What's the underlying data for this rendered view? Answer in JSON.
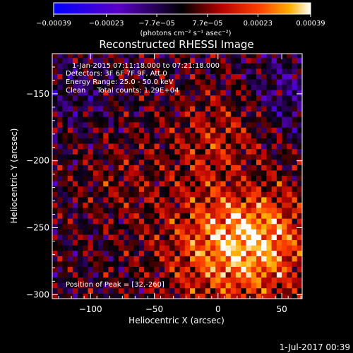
{
  "chart_data": {
    "type": "heatmap",
    "title": "Reconstructed RHESSI Image",
    "xlabel": "Heliocentric X (arcsec)",
    "ylabel": "Heliocentric Y (arcsec)",
    "xlim": [
      -130,
      66
    ],
    "ylim": [
      -303,
      -120
    ],
    "x_ticks": [
      -100,
      -50,
      0,
      50
    ],
    "y_ticks": [
      -300,
      -250,
      -200,
      -150
    ],
    "x_tick_labels": [
      "−100",
      "−50",
      "0",
      "50"
    ],
    "y_tick_labels": [
      "−300",
      "−250",
      "−200",
      "−150"
    ],
    "colorbar": {
      "range": [
        -0.00039,
        0.00039
      ],
      "tick_labels": [
        "−0.00039",
        "−0.00023",
        "−7.7e−05",
        "7.7e−05",
        "0.00023",
        "0.00039"
      ],
      "unit_label": "(photons cm⁻² s⁻¹ asec⁻²)",
      "colors": [
        "#0000ff",
        "#6600cc",
        "#000000",
        "#b40000",
        "#ff4000",
        "#ffb000",
        "#ffffff"
      ]
    },
    "annotations": [
      "1-Jan-2015 07:11:18.000 to 07:21:18.000",
      "Detectors: 3F 6F 7F 9F, Att 0",
      "Energy Range: 25.0 - 50.0 keV",
      "Clean     Total counts: 1.29E+04"
    ],
    "peak_label": "Position of Peak = [32,-260]",
    "peak": [
      32,
      -260
    ],
    "timestamp": "1-Jul-2017 00:39"
  }
}
